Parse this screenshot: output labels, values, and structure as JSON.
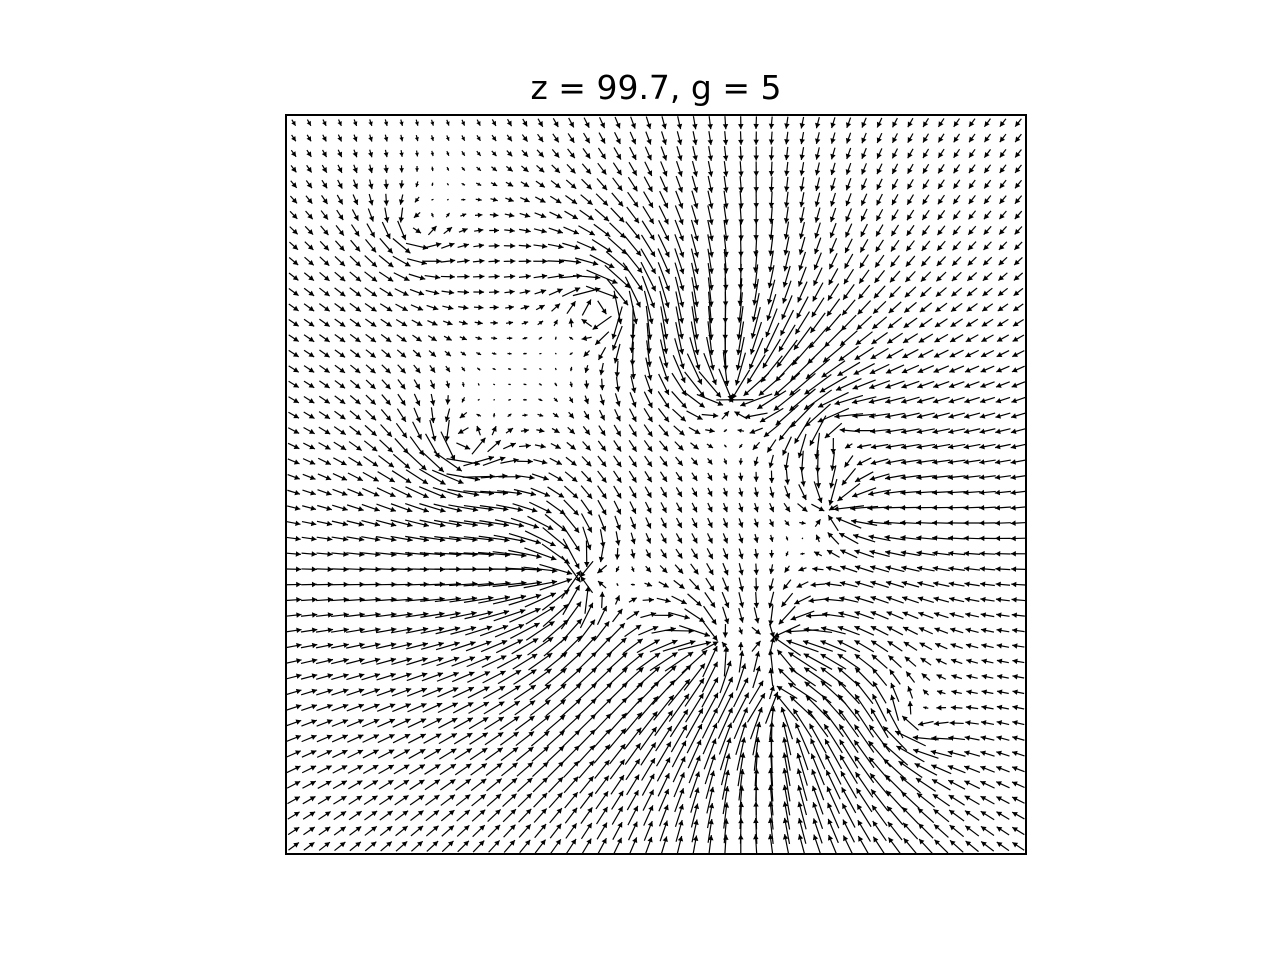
{
  "chart_data": {
    "type": "quiver",
    "title": "z = 99.7, g = 5",
    "xlabel": "",
    "ylabel": "",
    "axes_visible": false,
    "grid": false,
    "legend": "none",
    "grid_points": 48,
    "xlim": [
      0,
      47
    ],
    "ylim": [
      0,
      47
    ],
    "arrow_color": "#000000",
    "vortices": [
      {
        "x": 18.0,
        "y": 17.5,
        "strength": 30,
        "type": "sink"
      },
      {
        "x": 28.5,
        "y": 29.5,
        "strength": 28,
        "type": "sink"
      },
      {
        "x": 27.0,
        "y": 13.0,
        "strength": 22,
        "type": "sink"
      },
      {
        "x": 31.5,
        "y": 13.5,
        "strength": 20,
        "type": "sink"
      },
      {
        "x": 31.5,
        "y": 9.0,
        "strength": 20,
        "type": "sink"
      },
      {
        "x": 35.0,
        "y": 22.0,
        "strength": 18,
        "type": "sink"
      },
      {
        "x": 20.0,
        "y": 35.0,
        "strength": 24,
        "type": "swirl-cw"
      },
      {
        "x": 11.0,
        "y": 26.0,
        "strength": 20,
        "type": "swirl-ccw"
      },
      {
        "x": 40.0,
        "y": 8.0,
        "strength": 14,
        "type": "swirl-cw"
      },
      {
        "x": 35.0,
        "y": 27.0,
        "strength": 14,
        "type": "swirl-ccw"
      },
      {
        "x": 8.0,
        "y": 40.0,
        "strength": 12,
        "type": "swirl-ccw"
      }
    ]
  }
}
